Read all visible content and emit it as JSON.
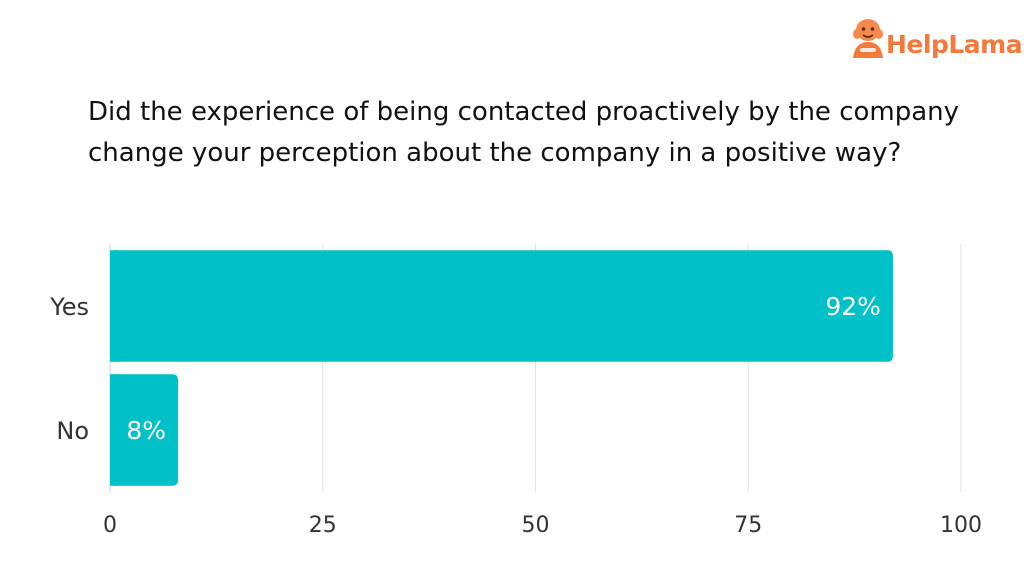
{
  "brand": {
    "logo_text": "HelpLama",
    "logo_color": "#f37a3a"
  },
  "chart_data": {
    "type": "bar",
    "orientation": "horizontal",
    "title": "Did the experience of being contacted proactively by the company change your perception about the company in a positive way?",
    "categories": [
      "Yes",
      "No"
    ],
    "values": [
      92,
      8
    ],
    "data_labels": [
      "92%",
      "8%"
    ],
    "xlim": [
      0,
      100
    ],
    "xticks": [
      0,
      25,
      50,
      75,
      100
    ],
    "xlabel": "",
    "ylabel": "",
    "grid": true,
    "legend": "none",
    "bar_color": "#00c0c8"
  }
}
